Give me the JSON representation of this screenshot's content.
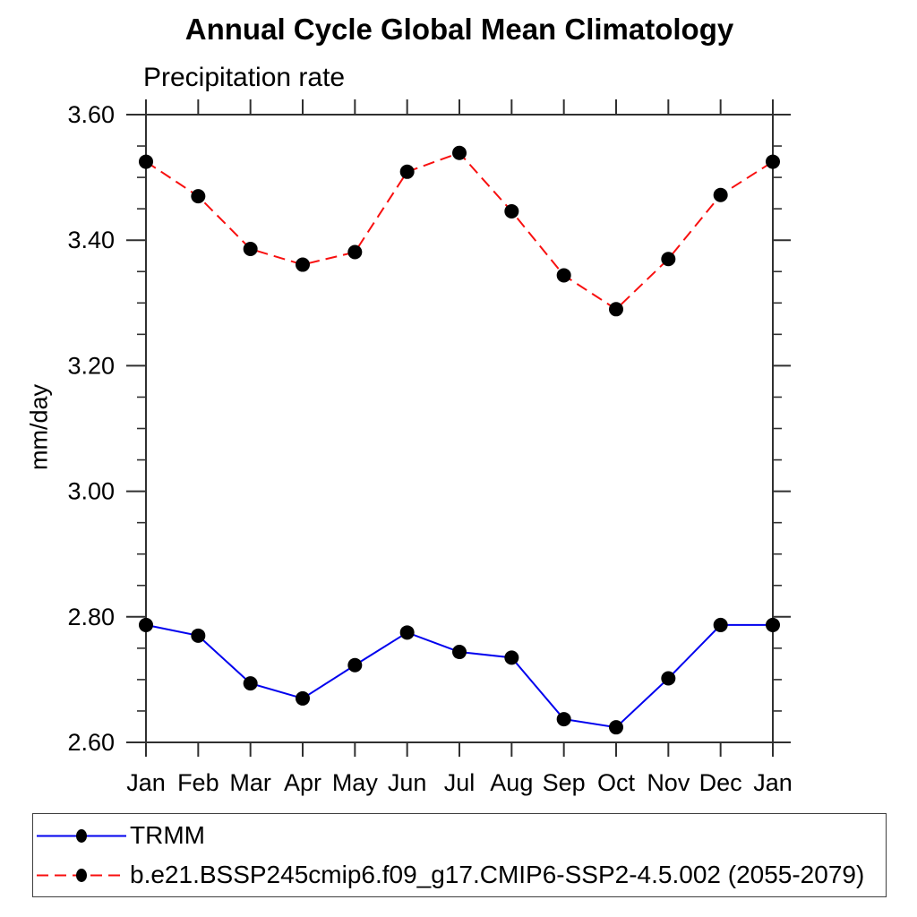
{
  "header": {
    "title": "Annual Cycle Global Mean Climatology",
    "subtitle": "Precipitation rate"
  },
  "axes": {
    "y_label": "mm/day",
    "y_tick_labels": [
      "2.60",
      "2.80",
      "3.00",
      "3.20",
      "3.40",
      "3.60"
    ],
    "x_tick_labels": [
      "Jan",
      "Feb",
      "Mar",
      "Apr",
      "May",
      "Jun",
      "Jul",
      "Aug",
      "Sep",
      "Oct",
      "Nov",
      "Dec",
      "Jan"
    ]
  },
  "chart_data": {
    "type": "line",
    "title": "Annual Cycle Global Mean Climatology",
    "subtitle": "Precipitation rate",
    "xlabel": "",
    "ylabel": "mm/day",
    "categories": [
      "Jan",
      "Feb",
      "Mar",
      "Apr",
      "May",
      "Jun",
      "Jul",
      "Aug",
      "Sep",
      "Oct",
      "Nov",
      "Dec",
      "Jan"
    ],
    "series": [
      {
        "name": "TRMM",
        "color": "#0000ee",
        "line_style": "solid",
        "marker": "filled-circle",
        "marker_color": "#000000",
        "values": [
          2.787,
          2.77,
          2.694,
          2.67,
          2.723,
          2.775,
          2.744,
          2.735,
          2.637,
          2.624,
          2.702,
          2.787,
          2.787
        ]
      },
      {
        "name": "b.e21.BSSP245cmip6.f09_g17.CMIP6-SSP2-4.5.002 (2055-2079)",
        "color": "#f80f0f",
        "line_style": "dashed",
        "marker": "filled-circle",
        "marker_color": "#000000",
        "values": [
          3.525,
          3.47,
          3.386,
          3.361,
          3.381,
          3.509,
          3.539,
          3.446,
          3.344,
          3.29,
          3.37,
          3.472,
          3.525
        ]
      }
    ],
    "ylim": [
      2.6,
      3.6
    ],
    "ytick_step": 0.2,
    "yminor_step": 0.05,
    "grid": false,
    "legend_position": "bottom",
    "frame_color": "#303030"
  },
  "legend": {
    "entries": [
      {
        "label": "TRMM",
        "color": "#0000ee",
        "line_style": "solid"
      },
      {
        "label": "b.e21.BSSP245cmip6.f09_g17.CMIP6-SSP2-4.5.002 (2055-2079)",
        "color": "#f80f0f",
        "line_style": "dashed"
      }
    ]
  }
}
